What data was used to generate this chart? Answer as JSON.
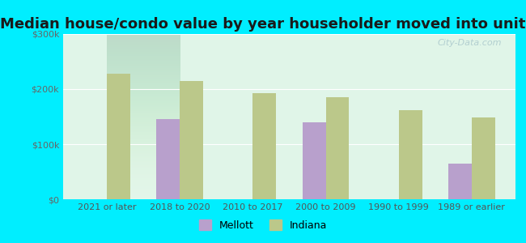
{
  "title": "Median house/condo value by year householder moved into unit",
  "categories": [
    "2021 or later",
    "2018 to 2020",
    "2010 to 2017",
    "2000 to 2009",
    "1990 to 1999",
    "1989 or earlier"
  ],
  "mellott_values": [
    null,
    145000,
    null,
    140000,
    null,
    65000
  ],
  "indiana_values": [
    228000,
    215000,
    193000,
    185000,
    162000,
    148000
  ],
  "mellott_color": "#b8a0cc",
  "indiana_color": "#bbc88a",
  "background_outer": "#00eeff",
  "background_inner": "#e0f5e8",
  "ylim": [
    0,
    300000
  ],
  "yticks": [
    0,
    100000,
    200000,
    300000
  ],
  "ytick_labels": [
    "$0",
    "$100k",
    "$200k",
    "$300k"
  ],
  "bar_width": 0.32,
  "title_fontsize": 13,
  "watermark": "City-Data.com"
}
